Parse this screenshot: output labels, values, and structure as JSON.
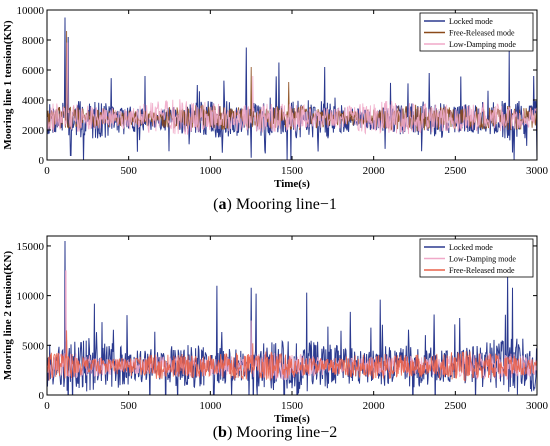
{
  "figure": {
    "captions": [
      {
        "letter": "a",
        "text": "Mooring line−1"
      },
      {
        "letter": "b",
        "text": "Mooring line−2"
      }
    ]
  },
  "chart_data": [
    {
      "type": "line",
      "title": "",
      "xlabel": "Time(s)",
      "ylabel": "Mooring line 1 tension(KN)",
      "xlim": [
        0,
        3000
      ],
      "ylim": [
        0,
        10000
      ],
      "xticks": [
        0,
        500,
        1000,
        1500,
        2000,
        2500,
        3000
      ],
      "yticks": [
        0,
        2000,
        4000,
        6000,
        8000,
        10000
      ],
      "legend_position": "top-right",
      "grid": false,
      "series": [
        {
          "name": "Locked mode",
          "color": "#2b3a8f",
          "base": 2700,
          "amplitude": 900,
          "spikes": [
            [
              110,
              9500
            ],
            [
              130,
              8200
            ],
            [
              145,
              300
            ],
            [
              600,
              5600
            ],
            [
              1220,
              7500
            ],
            [
              1250,
              150
            ],
            [
              1420,
              6500
            ],
            [
              1470,
              0
            ],
            [
              1700,
              6200
            ],
            [
              2340,
              5800
            ],
            [
              2830,
              7300
            ],
            [
              2860,
              0
            ],
            [
              2980,
              5600
            ],
            [
              3000,
              0
            ]
          ]
        },
        {
          "name": "Free-Released mode",
          "color": "#8b4a1a",
          "base": 2800,
          "amplitude": 600,
          "spikes": [
            [
              120,
              8600
            ],
            [
              1250,
              6200
            ],
            [
              1480,
              5200
            ]
          ]
        },
        {
          "name": "Low-Damping mode",
          "color": "#f0a8c8",
          "base": 2800,
          "amplitude": 800,
          "spikes": [
            [
              125,
              7800
            ],
            [
              1260,
              5600
            ]
          ]
        }
      ]
    },
    {
      "type": "line",
      "title": "",
      "xlabel": "Time(s)",
      "ylabel": "Mooring line 2 tension(KN)",
      "xlim": [
        0,
        3000
      ],
      "ylim": [
        0,
        16000
      ],
      "xticks": [
        0,
        500,
        1000,
        1500,
        2000,
        2500,
        3000
      ],
      "yticks": [
        0,
        5000,
        10000,
        15000
      ],
      "legend_position": "top-right",
      "grid": false,
      "series": [
        {
          "name": "Locked mode",
          "color": "#2b3a8f",
          "base": 2900,
          "amplitude": 1800,
          "spikes": [
            [
              110,
              15500
            ],
            [
              290,
              9200
            ],
            [
              1040,
              11000
            ],
            [
              1250,
              10800
            ],
            [
              1280,
              10200
            ],
            [
              1590,
              10300
            ],
            [
              2040,
              9600
            ],
            [
              2820,
              12200
            ],
            [
              2850,
              10800
            ]
          ]
        },
        {
          "name": "Low-Damping mode",
          "color": "#f0a8c8",
          "base": 2900,
          "amplitude": 900,
          "spikes": [
            [
              115,
              12500
            ],
            [
              1250,
              7500
            ]
          ]
        },
        {
          "name": "Free-Released mode",
          "color": "#e8624a",
          "base": 2900,
          "amplitude": 1000,
          "spikes": [
            [
              120,
              6500
            ],
            [
              1260,
              5200
            ]
          ]
        }
      ]
    }
  ]
}
